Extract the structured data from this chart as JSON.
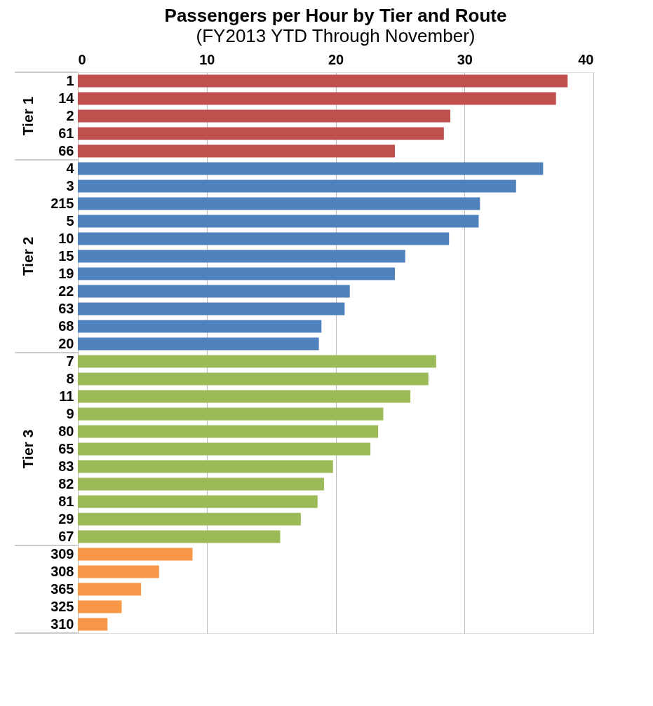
{
  "chart_data": {
    "type": "bar",
    "orientation": "horizontal",
    "title": "Passengers per Hour by Tier and Route",
    "subtitle": "(FY2013 YTD Through November)",
    "categories": [
      "1",
      "14",
      "2",
      "61",
      "66",
      "4",
      "3",
      "215",
      "5",
      "10",
      "15",
      "19",
      "22",
      "63",
      "68",
      "20",
      "7",
      "8",
      "11",
      "9",
      "80",
      "65",
      "83",
      "82",
      "81",
      "29",
      "67",
      "309",
      "308",
      "365",
      "325",
      "310"
    ],
    "series": [
      {
        "name": "Tier 1",
        "color": "#c0504d",
        "values": [
          38.0,
          37.1,
          28.9,
          28.4,
          24.6,
          null,
          null,
          null,
          null,
          null,
          null,
          null,
          null,
          null,
          null,
          null,
          null,
          null,
          null,
          null,
          null,
          null,
          null,
          null,
          null,
          null,
          null,
          null,
          null,
          null,
          null,
          null
        ]
      },
      {
        "name": "Tier 2",
        "color": "#4f81bd",
        "values": [
          null,
          null,
          null,
          null,
          null,
          36.1,
          34.0,
          31.2,
          31.1,
          28.8,
          25.4,
          24.6,
          21.1,
          20.7,
          18.9,
          18.7,
          null,
          null,
          null,
          null,
          null,
          null,
          null,
          null,
          null,
          null,
          null,
          null,
          null,
          null,
          null,
          null
        ]
      },
      {
        "name": "Tier 3",
        "color": "#9bbb59",
        "values": [
          null,
          null,
          null,
          null,
          null,
          null,
          null,
          null,
          null,
          null,
          null,
          null,
          null,
          null,
          null,
          null,
          27.8,
          27.2,
          25.8,
          23.7,
          23.3,
          22.7,
          19.8,
          19.1,
          18.6,
          17.3,
          15.7,
          null,
          null,
          null,
          null,
          null
        ]
      },
      {
        "color": "#f79646",
        "values": [
          null,
          null,
          null,
          null,
          null,
          null,
          null,
          null,
          null,
          null,
          null,
          null,
          null,
          null,
          null,
          null,
          null,
          null,
          null,
          null,
          null,
          null,
          null,
          null,
          null,
          null,
          null,
          8.9,
          6.3,
          4.9,
          3.4,
          2.3
        ]
      }
    ],
    "xlim": [
      0,
      40
    ],
    "xticks": [
      0,
      10,
      20,
      30,
      40
    ],
    "grid": "x"
  }
}
